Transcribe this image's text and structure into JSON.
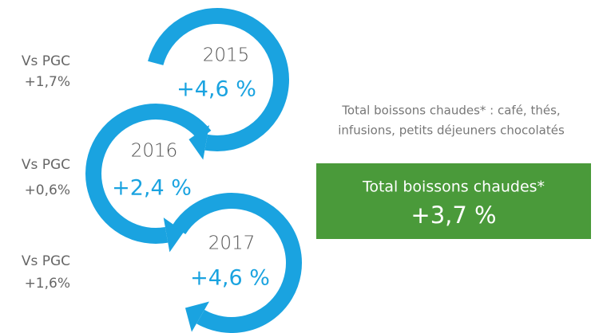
{
  "years": [
    {
      "year": "2015",
      "growth": "+4,6 %",
      "vs_label": "Vs PGC",
      "vs_value": "+1,7%"
    },
    {
      "year": "2016",
      "growth": "+2,4 %",
      "vs_label": "Vs PGC",
      "vs_value": "+0,6%"
    },
    {
      "year": "2017",
      "growth": "+4,6 %",
      "vs_label": "Vs PGC",
      "vs_value": "+1,6%"
    }
  ],
  "note": {
    "line1": "Total boissons chaudes* : café, thés,",
    "line2": "infusions, petits déjeuners chocolatés"
  },
  "total": {
    "title": "Total boissons chaudes*",
    "value": "+3,7 %"
  }
}
